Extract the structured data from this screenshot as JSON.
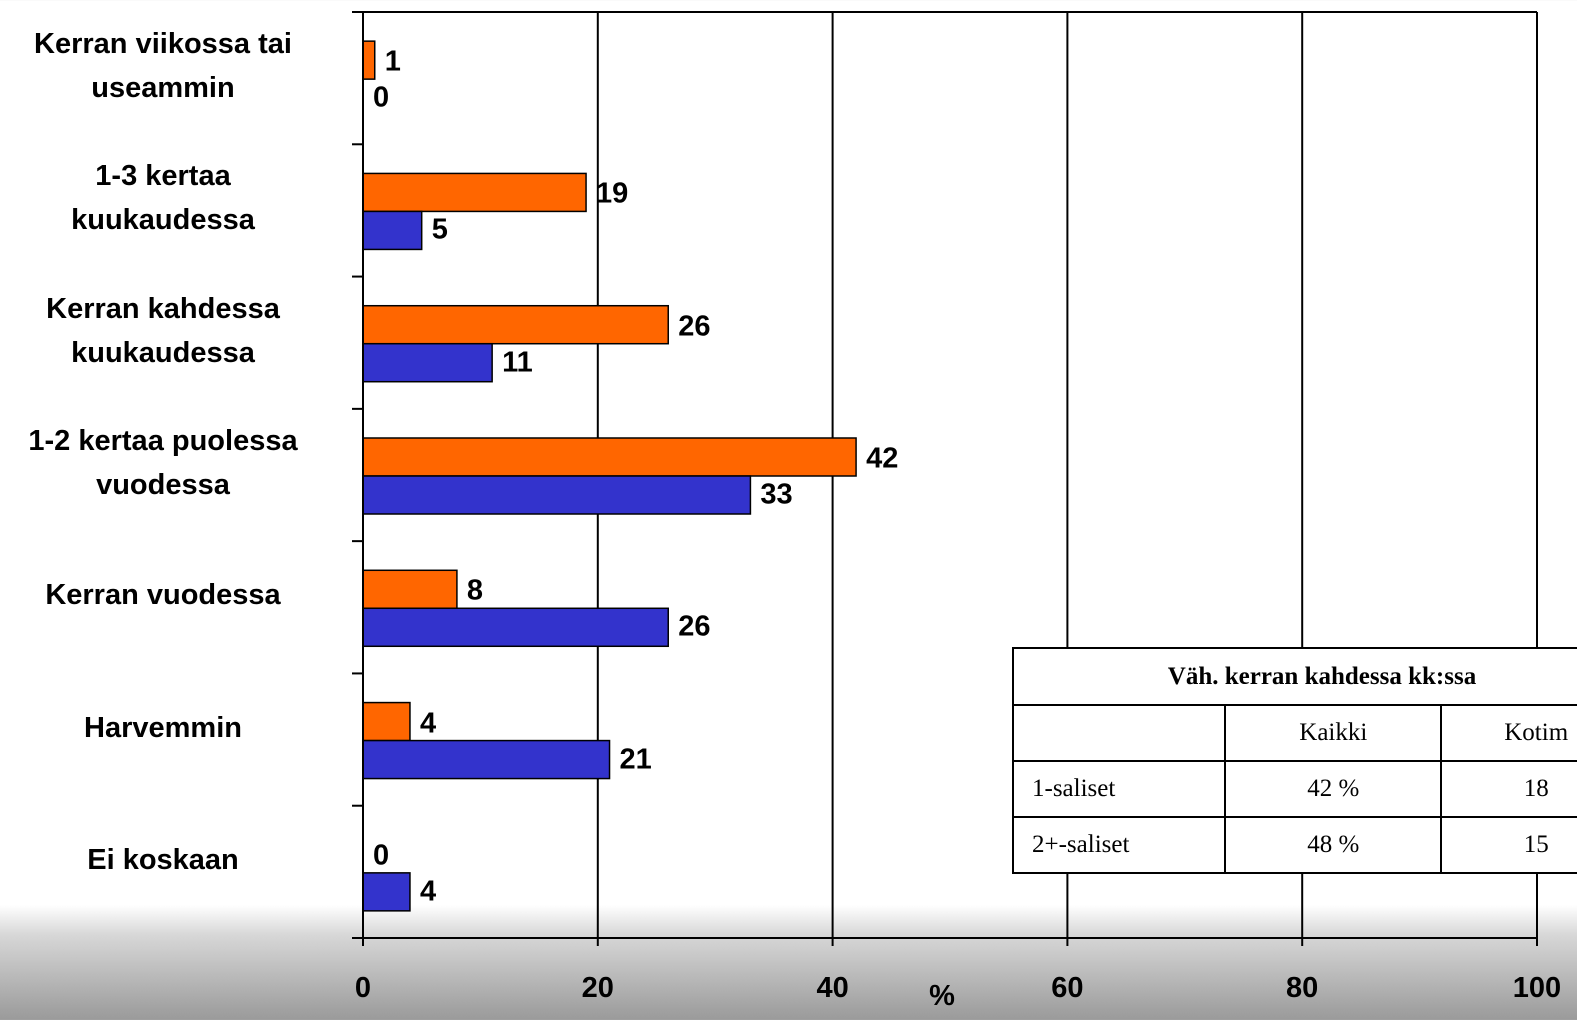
{
  "chart_data": {
    "type": "bar",
    "orientation": "horizontal",
    "categories": [
      "Kerran viikossa tai useammin",
      "1-3 kertaa kuukaudessa",
      "Kerran kahdessa kuukaudessa",
      "1-2 kertaa puolessa vuodessa",
      "Kerran vuodessa",
      "Harvemmin",
      "Ei koskaan"
    ],
    "series": [
      {
        "values": [
          1,
          19,
          26,
          42,
          8,
          4,
          0
        ],
        "color": "#ff6600"
      },
      {
        "values": [
          0,
          5,
          11,
          33,
          26,
          21,
          4
        ],
        "color": "#3333cc"
      }
    ],
    "xlabel": "%",
    "xlim": [
      0,
      100
    ],
    "xticks": [
      0,
      20,
      40,
      60,
      80,
      100
    ],
    "xtick_labels": [
      "0",
      "20",
      "40",
      "60",
      "80",
      "100"
    ],
    "grid": true
  },
  "category_lines": [
    [
      "Kerran viikossa tai",
      "useammin"
    ],
    [
      "1-3 kertaa",
      "kuukaudessa"
    ],
    [
      "Kerran kahdessa",
      "kuukaudessa"
    ],
    [
      "1-2 kertaa puolessa",
      "vuodessa"
    ],
    [
      "Kerran vuodessa"
    ],
    [
      "Harvemmin"
    ],
    [
      "Ei koskaan"
    ]
  ],
  "summary_table": {
    "title": "Väh. kerran kahdessa kk:ssa",
    "header": [
      "",
      "Kaikki",
      "Kotim"
    ],
    "rows": [
      {
        "label": "1-saliset",
        "kaikki": "42 %",
        "kotim": "18"
      },
      {
        "label": "2+-saliset",
        "kaikki": "48 %",
        "kotim": "15"
      }
    ]
  }
}
